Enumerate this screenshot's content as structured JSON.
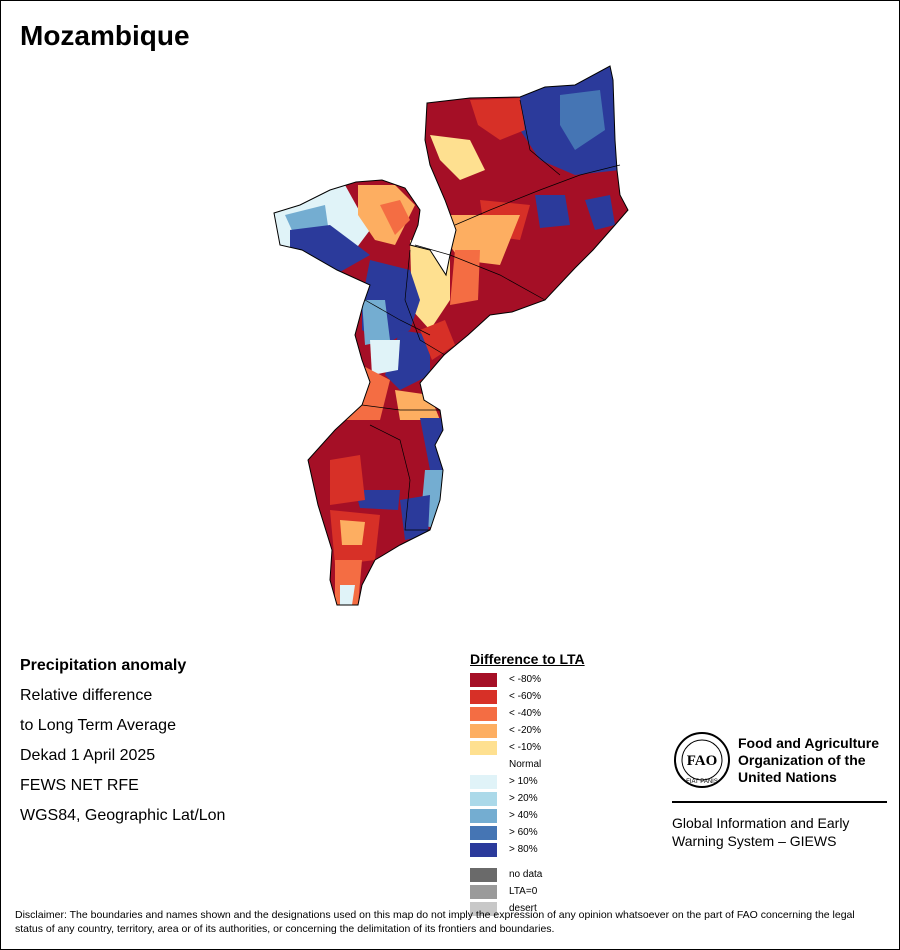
{
  "map_title": "Mozambique",
  "info_lines": [
    "Precipitation anomaly",
    "Relative difference",
    "to Long Term Average",
    "Dekad 1 April 2025",
    "FEWS NET RFE",
    "WGS84, Geographic Lat/Lon"
  ],
  "legend": {
    "title": "Difference to LTA",
    "classes": [
      {
        "label": "< -80%",
        "color": "#a50f26"
      },
      {
        "label": "< -60%",
        "color": "#d73027"
      },
      {
        "label": "< -40%",
        "color": "#f46d43"
      },
      {
        "label": "< -20%",
        "color": "#fdae61"
      },
      {
        "label": "< -10%",
        "color": "#fee090"
      },
      {
        "label": "Normal",
        "color": ""
      },
      {
        "label": "> 10%",
        "color": "#e0f3f8"
      },
      {
        "label": "> 20%",
        "color": "#abd9e9"
      },
      {
        "label": "> 40%",
        "color": "#74add1"
      },
      {
        "label": "> 60%",
        "color": "#4575b4"
      },
      {
        "label": "> 80%",
        "color": "#2b3a9b"
      }
    ],
    "special": [
      {
        "label": "no data",
        "color": "#6a6a6a"
      },
      {
        "label": "LTA=0",
        "color": "#9a9a9a"
      },
      {
        "label": "desert",
        "color": "#c8c8c8"
      }
    ]
  },
  "org": {
    "logo_text": "FAO",
    "logo_motto": "FIAT PANIS",
    "name_lines": [
      "Food and Agriculture",
      "Organization of the",
      "United Nations"
    ],
    "giews_lines": [
      "Global Information and Early",
      "Warning System – GIEWS"
    ]
  },
  "disclaimer": "Disclaimer: The boundaries and names shown and the designations used on this map do not imply the expression of any opinion whatsoever on the part of FAO concerning the legal status of any country, territory, area or of its authorities, or concerning the delimitation of its frontiers and boundaries."
}
